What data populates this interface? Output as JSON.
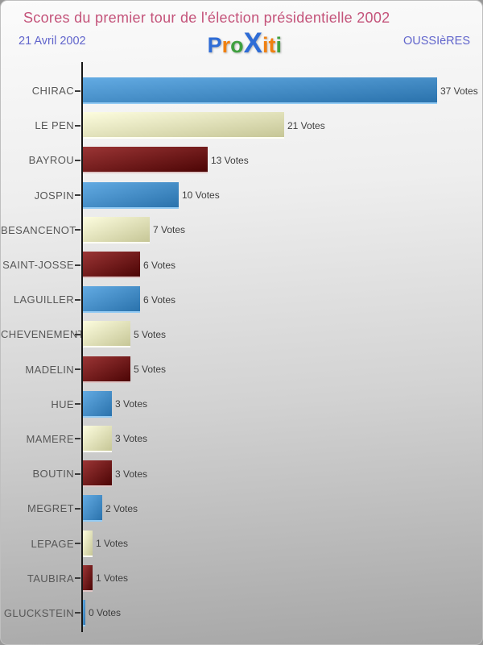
{
  "page": {
    "title": "Scores du premier tour de l'élection présidentielle 2002",
    "date": "21 Avril 2002",
    "location": "OUSSIèRES",
    "title_color": "#c4537a",
    "subheader_color": "#6165cc",
    "background_top": "#fbfbfb",
    "background_bottom": "#a6a6a6"
  },
  "logo": {
    "name": "Proxiti",
    "letters": [
      {
        "char": "P",
        "color": "#2e6cd6",
        "big": false
      },
      {
        "char": "r",
        "color": "#f08010",
        "big": false
      },
      {
        "char": "o",
        "color": "#3fa03f",
        "big": false
      },
      {
        "char": "X",
        "color": "#2e6cd6",
        "big": true
      },
      {
        "char": "i",
        "color": "#f08010",
        "big": false
      },
      {
        "char": "t",
        "color": "#f08010",
        "big": false
      },
      {
        "char": "i",
        "color": "#3fa03f",
        "big": false
      }
    ]
  },
  "chart_data": {
    "type": "bar",
    "orientation": "horizontal",
    "title": "Scores du premier tour de l'élection présidentielle 2002",
    "categories": [
      "CHIRAC",
      "LE PEN",
      "BAYROU",
      "JOSPIN",
      "BESANCENOT",
      "SAINT-JOSSE",
      "LAGUILLER",
      "CHEVENEMENT",
      "MADELIN",
      "HUE",
      "MAMERE",
      "BOUTIN",
      "MEGRET",
      "LEPAGE",
      "TAUBIRA",
      "GLUCKSTEIN"
    ],
    "values": [
      37,
      21,
      13,
      10,
      7,
      6,
      6,
      5,
      5,
      3,
      3,
      3,
      2,
      1,
      1,
      0
    ],
    "value_suffix": " Votes",
    "xlim": [
      0,
      37
    ],
    "grid": false,
    "legend": false,
    "axis_color": "#161616",
    "bar_color_cycle": [
      "blue",
      "cream",
      "red"
    ],
    "bar_styles": {
      "blue": {
        "from": "#63abe3",
        "to": "#2a72ac",
        "edge": "#93cbf4"
      },
      "cream": {
        "from": "#fdfddf",
        "to": "#c6c696",
        "edge": "#fffff4"
      },
      "red": {
        "from": "#9b3535",
        "to": "#4c0505",
        "edge": "#dfc6c6"
      }
    }
  }
}
